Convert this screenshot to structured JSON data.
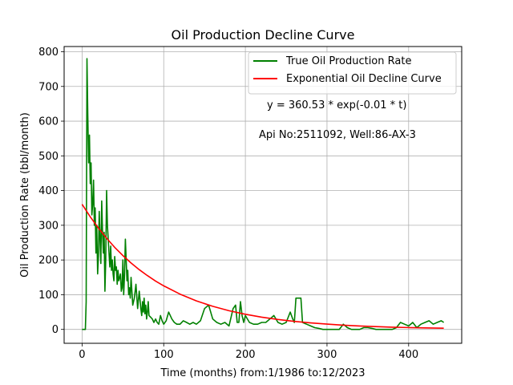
{
  "chart_data": {
    "type": "line",
    "title": "Oil Production Decline Curve",
    "xlabel": "Time (months) from:1/1986 to:12/2023",
    "ylabel": "Oil Production Rate (bbl/month)",
    "xlim": [
      -22,
      465
    ],
    "ylim": [
      -40,
      815
    ],
    "xticks": [
      0,
      100,
      200,
      300,
      400
    ],
    "yticks": [
      0,
      100,
      200,
      300,
      400,
      500,
      600,
      700,
      800
    ],
    "grid": true,
    "legend_position": "top-right",
    "annotations": [
      "y = 360.53 * exp(-0.01 * t)",
      "Api No:2511092, Well:86-AX-3"
    ],
    "series": [
      {
        "name": "True Oil Production Rate",
        "color": "#008000",
        "x": [
          0,
          4,
          5,
          6,
          7,
          8,
          9,
          10,
          11,
          12,
          13,
          14,
          15,
          16,
          17,
          18,
          19,
          20,
          21,
          22,
          23,
          24,
          25,
          26,
          27,
          28,
          29,
          30,
          31,
          32,
          33,
          34,
          35,
          36,
          37,
          38,
          39,
          40,
          41,
          42,
          43,
          44,
          45,
          46,
          47,
          48,
          49,
          50,
          51,
          52,
          53,
          54,
          55,
          56,
          57,
          58,
          59,
          60,
          62,
          64,
          66,
          68,
          70,
          72,
          73,
          74,
          75,
          76,
          77,
          78,
          79,
          80,
          81,
          82,
          84,
          86,
          88,
          90,
          92,
          94,
          96,
          98,
          100,
          103,
          106,
          110,
          113,
          116,
          120,
          124,
          128,
          132,
          136,
          140,
          145,
          150,
          155,
          160,
          165,
          170,
          175,
          180,
          185,
          188,
          190,
          192,
          194,
          196,
          198,
          200,
          205,
          210,
          215,
          220,
          225,
          230,
          235,
          240,
          245,
          250,
          255,
          258,
          260,
          262,
          265,
          268,
          270,
          275,
          280,
          285,
          290,
          295,
          300,
          305,
          310,
          315,
          320,
          325,
          330,
          335,
          340,
          345,
          350,
          355,
          360,
          365,
          370,
          375,
          380,
          385,
          390,
          395,
          400,
          405,
          410,
          415,
          420,
          425,
          430,
          435,
          440,
          443
        ],
        "y": [
          0,
          0,
          80,
          780,
          620,
          480,
          560,
          420,
          480,
          330,
          360,
          430,
          300,
          350,
          220,
          300,
          160,
          210,
          340,
          260,
          190,
          370,
          280,
          220,
          280,
          110,
          200,
          400,
          300,
          260,
          220,
          180,
          240,
          170,
          200,
          160,
          140,
          210,
          170,
          180,
          130,
          170,
          140,
          150,
          160,
          110,
          120,
          200,
          100,
          160,
          260,
          200,
          140,
          170,
          100,
          120,
          90,
          150,
          70,
          90,
          130,
          60,
          110,
          60,
          40,
          80,
          50,
          90,
          45,
          70,
          30,
          50,
          80,
          40,
          35,
          30,
          20,
          30,
          20,
          15,
          40,
          25,
          15,
          25,
          50,
          30,
          20,
          15,
          15,
          25,
          20,
          15,
          20,
          15,
          25,
          60,
          70,
          30,
          20,
          15,
          20,
          10,
          60,
          70,
          20,
          20,
          80,
          40,
          20,
          40,
          20,
          15,
          15,
          20,
          20,
          30,
          40,
          20,
          15,
          20,
          50,
          30,
          20,
          90,
          90,
          90,
          20,
          15,
          10,
          5,
          3,
          0,
          0,
          0,
          0,
          0,
          15,
          5,
          0,
          0,
          0,
          5,
          5,
          3,
          0,
          0,
          0,
          0,
          0,
          5,
          20,
          15,
          10,
          20,
          5,
          15,
          20,
          25,
          15,
          20,
          25,
          20
        ]
      },
      {
        "name": "Exponential Oil Decline Curve",
        "color": "#ff0000",
        "x": [
          0,
          10,
          20,
          30,
          40,
          50,
          60,
          70,
          80,
          90,
          100,
          120,
          140,
          160,
          180,
          200,
          220,
          240,
          260,
          280,
          300,
          320,
          340,
          360,
          380,
          400,
          420,
          443
        ],
        "y": [
          360.53,
          324.4,
          291.9,
          262.7,
          236.4,
          212.7,
          191.4,
          172.2,
          155.0,
          139.4,
          125.5,
          101.6,
          82.2,
          66.5,
          53.9,
          43.6,
          35.3,
          28.6,
          23.1,
          18.7,
          15.2,
          12.3,
          9.9,
          8.0,
          6.5,
          5.3,
          4.3,
          3.4
        ]
      }
    ]
  }
}
